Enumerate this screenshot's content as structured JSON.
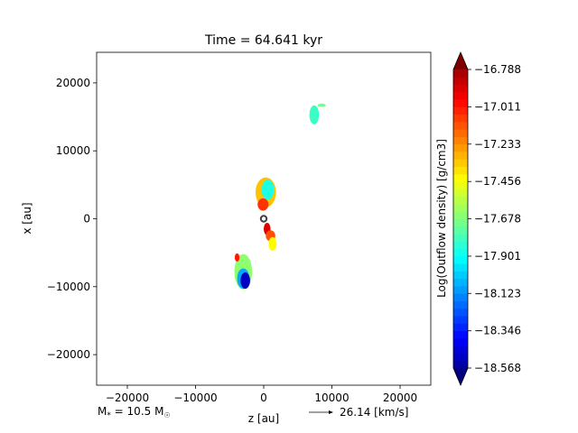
{
  "chart_data": {
    "type": "heatmap",
    "title": "Time = 64.641 kyr",
    "xlabel": "z [au]",
    "ylabel": "x [au]",
    "xlim": [
      -24500,
      24500
    ],
    "ylim": [
      -24500,
      24500
    ],
    "xticks": [
      -20000,
      -10000,
      0,
      10000,
      20000
    ],
    "xtick_labels": [
      "−20000",
      "−10000",
      "0",
      "10000",
      "20000"
    ],
    "yticks": [
      20000,
      10000,
      0,
      -10000,
      -20000
    ],
    "ytick_labels": [
      "20000",
      "10000",
      "0",
      "−10000",
      "−20000"
    ],
    "grid": false,
    "colorbar": {
      "label": "Log(Outflow density) [g/cm3]",
      "min": -18.568,
      "max": -16.788,
      "ticks": [
        -16.788,
        -17.011,
        -17.233,
        -17.456,
        -17.678,
        -17.901,
        -18.123,
        -18.346,
        -18.568
      ],
      "tick_labels": [
        "−16.788",
        "−17.011",
        "−17.233",
        "−17.456",
        "−17.678",
        "−17.901",
        "−18.123",
        "−18.346",
        "−18.568"
      ],
      "extend": "both",
      "colormap": "jet"
    },
    "regions": [
      {
        "name": "far-upper-clump",
        "z": 7400,
        "x": 15300,
        "rz": 700,
        "rx": 1400,
        "value": -17.8
      },
      {
        "name": "far-upper-clump-tip",
        "z": 8500,
        "x": 16700,
        "rz": 600,
        "rx": 250,
        "value": -17.7
      },
      {
        "name": "upper-jet-outer",
        "z": 300,
        "x": 3900,
        "rz": 1500,
        "rx": 2200,
        "value": -17.35
      },
      {
        "name": "upper-jet-core",
        "z": 600,
        "x": 4300,
        "rz": 900,
        "rx": 1500,
        "value": -17.85
      },
      {
        "name": "upper-jet-base",
        "z": -100,
        "x": 2100,
        "rz": 800,
        "rx": 900,
        "value": -17.1
      },
      {
        "name": "lower-jet-near",
        "z": 500,
        "x": -1500,
        "rz": 500,
        "rx": 900,
        "value": -16.95
      },
      {
        "name": "lower-jet-mid",
        "z": 1000,
        "x": -2500,
        "rz": 700,
        "rx": 800,
        "value": -17.15
      },
      {
        "name": "lower-jet-far",
        "z": 1300,
        "x": -3700,
        "rz": 600,
        "rx": 1000,
        "value": -17.45
      },
      {
        "name": "lower-left-outer",
        "z": -3000,
        "x": -7800,
        "rz": 1300,
        "rx": 2600,
        "value": -17.65
      },
      {
        "name": "lower-left-mid",
        "z": -3000,
        "x": -8800,
        "rz": 900,
        "rx": 1500,
        "value": -18.05
      },
      {
        "name": "lower-left-core",
        "z": -2700,
        "x": -9100,
        "rz": 700,
        "rx": 1200,
        "value": -18.45
      },
      {
        "name": "lower-left-tip",
        "z": -3900,
        "x": -5700,
        "rz": 350,
        "rx": 600,
        "value": -17.05
      }
    ],
    "star_marker": {
      "z": 0,
      "x": 0
    }
  },
  "annotations": {
    "mass_label": "M",
    "mass_sub": "*",
    "mass_value": " = 10.5 M",
    "mass_unit_sub": "☉",
    "velocity_label": "26.14 [km/s]"
  },
  "colors": {
    "star_marker": "#404040"
  }
}
